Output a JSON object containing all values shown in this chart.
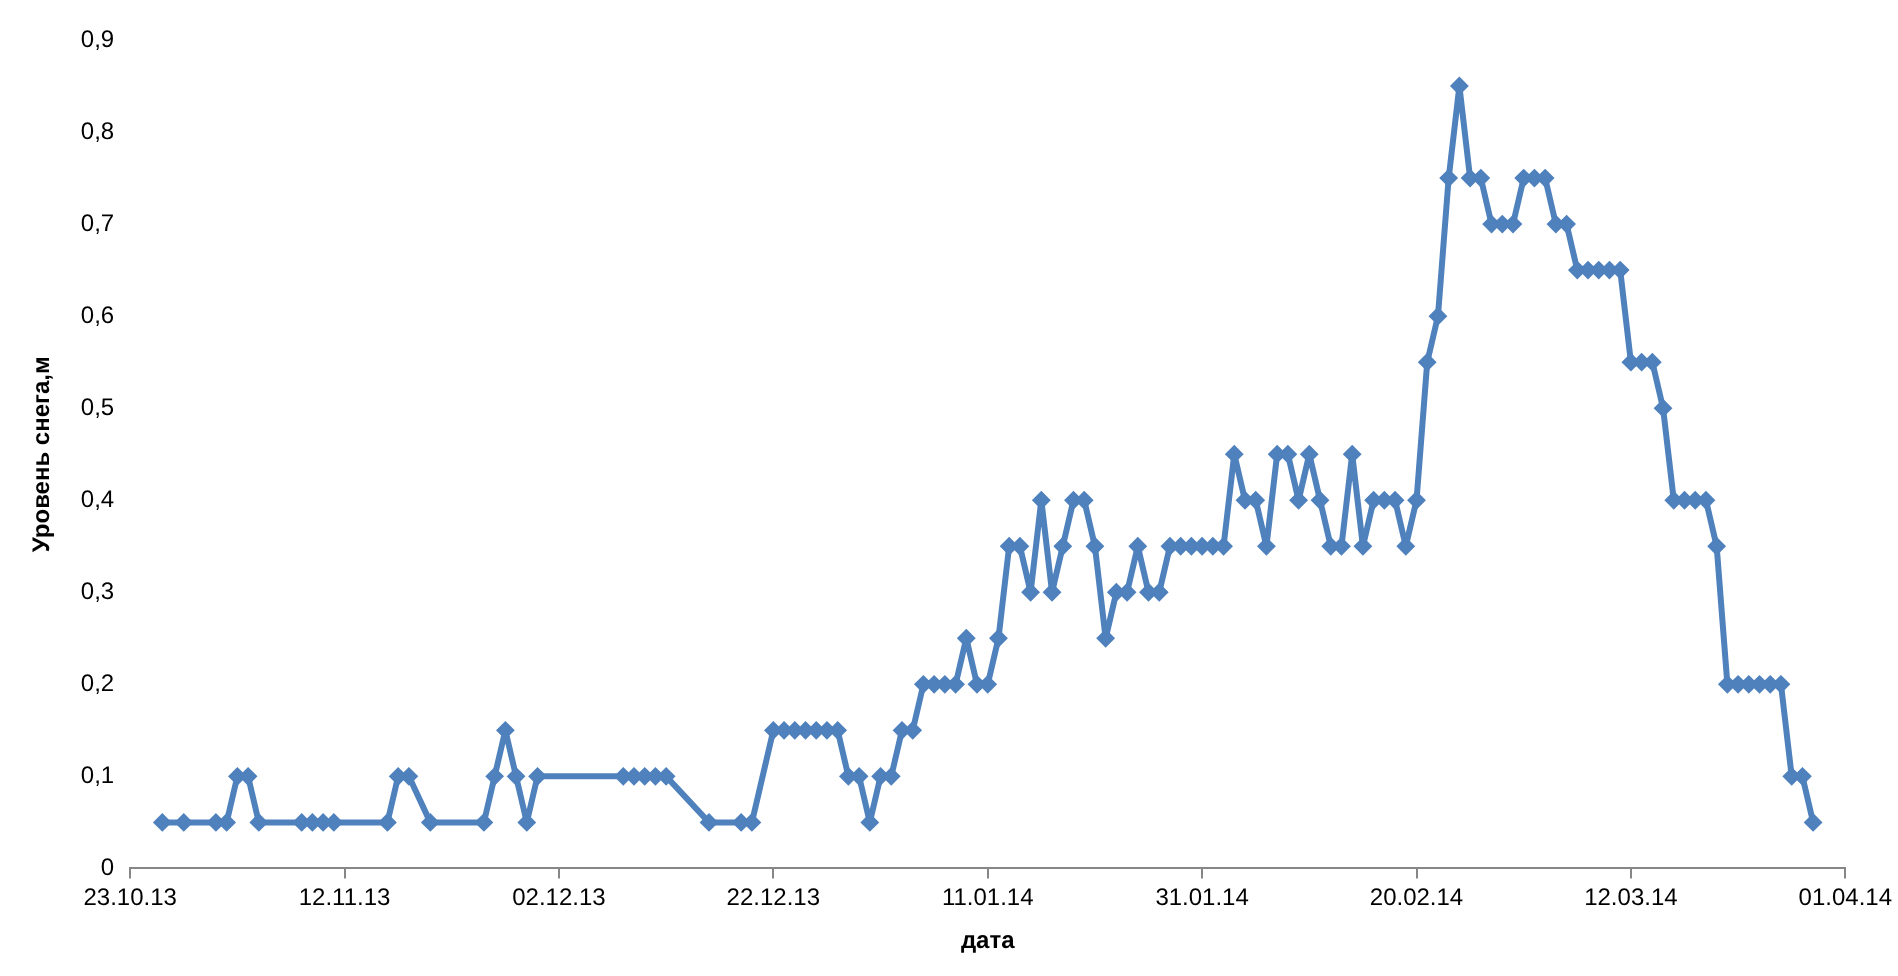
{
  "chart_data": {
    "type": "line",
    "xlabel": "дата",
    "ylabel": "Уровень снега,м",
    "xlim": [
      "2013-10-23",
      "2014-04-01"
    ],
    "xticks": [
      {
        "value": "2013-10-23",
        "label": "23.10.13"
      },
      {
        "value": "2013-11-12",
        "label": "12.11.13"
      },
      {
        "value": "2013-12-02",
        "label": "02.12.13"
      },
      {
        "value": "2013-12-22",
        "label": "22.12.13"
      },
      {
        "value": "2014-01-11",
        "label": "11.01.14"
      },
      {
        "value": "2014-01-31",
        "label": "31.01.14"
      },
      {
        "value": "2014-02-20",
        "label": "20.02.14"
      },
      {
        "value": "2014-03-12",
        "label": "12.03.14"
      },
      {
        "value": "2014-04-01",
        "label": "01.04.14"
      }
    ],
    "ylim": [
      0,
      0.9
    ],
    "yticks": [
      0,
      {
        "value": 0.1,
        "label": "0,1"
      },
      {
        "value": 0.2,
        "label": "0,2"
      },
      {
        "value": 0.3,
        "label": "0,3"
      },
      {
        "value": 0.4,
        "label": "0,4"
      },
      {
        "value": 0.5,
        "label": "0,5"
      },
      {
        "value": 0.6,
        "label": "0,6"
      },
      {
        "value": 0.7,
        "label": "0,7"
      },
      {
        "value": 0.8,
        "label": "0,8"
      },
      {
        "value": 0.9,
        "label": "0,9"
      }
    ],
    "grid": false,
    "legend": false,
    "marker": "diamond",
    "line_style": "solid",
    "series": [
      {
        "color": "#4f81bd",
        "x": [
          "2013-10-26",
          "2013-10-28",
          "2013-10-31",
          "2013-11-01",
          "2013-11-02",
          "2013-11-03",
          "2013-11-04",
          "2013-11-08",
          "2013-11-09",
          "2013-11-10",
          "2013-11-11",
          "2013-11-16",
          "2013-11-17",
          "2013-11-18",
          "2013-11-20",
          "2013-11-25",
          "2013-11-26",
          "2013-11-27",
          "2013-11-28",
          "2013-11-29",
          "2013-11-30",
          "2013-12-08",
          "2013-12-09",
          "2013-12-10",
          "2013-12-11",
          "2013-12-12",
          "2013-12-16",
          "2013-12-19",
          "2013-12-20",
          "2013-12-22",
          "2013-12-23",
          "2013-12-24",
          "2013-12-25",
          "2013-12-26",
          "2013-12-27",
          "2013-12-28",
          "2013-12-29",
          "2013-12-30",
          "2013-12-31",
          "2014-01-01",
          "2014-01-02",
          "2014-01-03",
          "2014-01-04",
          "2014-01-05",
          "2014-01-06",
          "2014-01-07",
          "2014-01-08",
          "2014-01-09",
          "2014-01-10",
          "2014-01-11",
          "2014-01-12",
          "2014-01-13",
          "2014-01-14",
          "2014-01-15",
          "2014-01-16",
          "2014-01-17",
          "2014-01-18",
          "2014-01-19",
          "2014-01-20",
          "2014-01-21",
          "2014-01-22",
          "2014-01-23",
          "2014-01-24",
          "2014-01-25",
          "2014-01-26",
          "2014-01-27",
          "2014-01-28",
          "2014-01-29",
          "2014-01-30",
          "2014-01-31",
          "2014-02-01",
          "2014-02-02",
          "2014-02-03",
          "2014-02-04",
          "2014-02-05",
          "2014-02-06",
          "2014-02-07",
          "2014-02-08",
          "2014-02-09",
          "2014-02-10",
          "2014-02-11",
          "2014-02-12",
          "2014-02-13",
          "2014-02-14",
          "2014-02-15",
          "2014-02-16",
          "2014-02-17",
          "2014-02-18",
          "2014-02-19",
          "2014-02-20",
          "2014-02-21",
          "2014-02-22",
          "2014-02-23",
          "2014-02-24",
          "2014-02-25",
          "2014-02-26",
          "2014-02-27",
          "2014-02-28",
          "2014-03-01",
          "2014-03-02",
          "2014-03-03",
          "2014-03-04",
          "2014-03-05",
          "2014-03-06",
          "2014-03-07",
          "2014-03-08",
          "2014-03-09",
          "2014-03-10",
          "2014-03-11",
          "2014-03-12",
          "2014-03-13",
          "2014-03-14",
          "2014-03-15",
          "2014-03-16",
          "2014-03-17",
          "2014-03-18",
          "2014-03-19",
          "2014-03-20",
          "2014-03-21",
          "2014-03-22",
          "2014-03-23",
          "2014-03-24",
          "2014-03-25",
          "2014-03-26",
          "2014-03-27",
          "2014-03-28",
          "2014-03-29"
        ],
        "values": [
          0.05,
          0.05,
          0.05,
          0.05,
          0.1,
          0.1,
          0.05,
          0.05,
          0.05,
          0.05,
          0.05,
          0.05,
          0.1,
          0.1,
          0.05,
          0.05,
          0.1,
          0.15,
          0.1,
          0.05,
          0.1,
          0.1,
          0.1,
          0.1,
          0.1,
          0.1,
          0.05,
          0.05,
          0.05,
          0.15,
          0.15,
          0.15,
          0.15,
          0.15,
          0.15,
          0.15,
          0.1,
          0.1,
          0.05,
          0.1,
          0.1,
          0.15,
          0.15,
          0.2,
          0.2,
          0.2,
          0.2,
          0.25,
          0.2,
          0.2,
          0.25,
          0.35,
          0.35,
          0.3,
          0.4,
          0.3,
          0.35,
          0.4,
          0.4,
          0.35,
          0.25,
          0.3,
          0.3,
          0.35,
          0.3,
          0.3,
          0.35,
          0.35,
          0.35,
          0.35,
          0.35,
          0.35,
          0.45,
          0.4,
          0.4,
          0.35,
          0.45,
          0.45,
          0.4,
          0.45,
          0.4,
          0.35,
          0.35,
          0.45,
          0.35,
          0.4,
          0.4,
          0.4,
          0.35,
          0.4,
          0.55,
          0.6,
          0.75,
          0.85,
          0.75,
          0.75,
          0.7,
          0.7,
          0.7,
          0.75,
          0.75,
          0.75,
          0.7,
          0.7,
          0.65,
          0.65,
          0.65,
          0.65,
          0.65,
          0.55,
          0.55,
          0.55,
          0.5,
          0.4,
          0.4,
          0.4,
          0.4,
          0.35,
          0.2,
          0.2,
          0.2,
          0.2,
          0.2,
          0.2,
          0.1,
          0.1,
          0.05
        ]
      }
    ]
  }
}
